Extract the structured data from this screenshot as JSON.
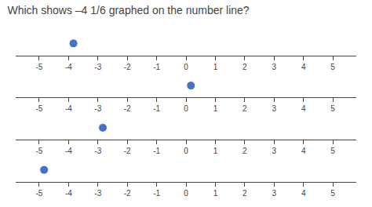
{
  "chart_data": [
    {
      "type": "number_line",
      "title": "Which shows –4 1/6 graphed on the number line?",
      "x": [
        -3.833
      ],
      "color": "#4472C4",
      "xlim": [
        -5.8,
        5.8
      ],
      "xticks": [
        -5,
        -4,
        -3,
        -2,
        -1,
        0,
        1,
        2,
        3,
        4,
        5
      ]
    },
    {
      "type": "number_line",
      "x": [
        0.167
      ],
      "color": "#4472C4",
      "xlim": [
        -5.8,
        5.8
      ],
      "xticks": [
        -5,
        -4,
        -3,
        -2,
        -1,
        0,
        1,
        2,
        3,
        4,
        5
      ]
    },
    {
      "type": "number_line",
      "x": [
        -2.833
      ],
      "color": "#4472C4",
      "xlim": [
        -5.8,
        5.8
      ],
      "xticks": [
        -5,
        -4,
        -3,
        -2,
        -1,
        0,
        1,
        2,
        3,
        4,
        5
      ]
    },
    {
      "type": "number_line",
      "x": [
        -4.833
      ],
      "color": "#4472C4",
      "xlim": [
        -5.8,
        5.8
      ],
      "xticks": [
        -5,
        -4,
        -3,
        -2,
        -1,
        0,
        1,
        2,
        3,
        4,
        5
      ]
    }
  ]
}
